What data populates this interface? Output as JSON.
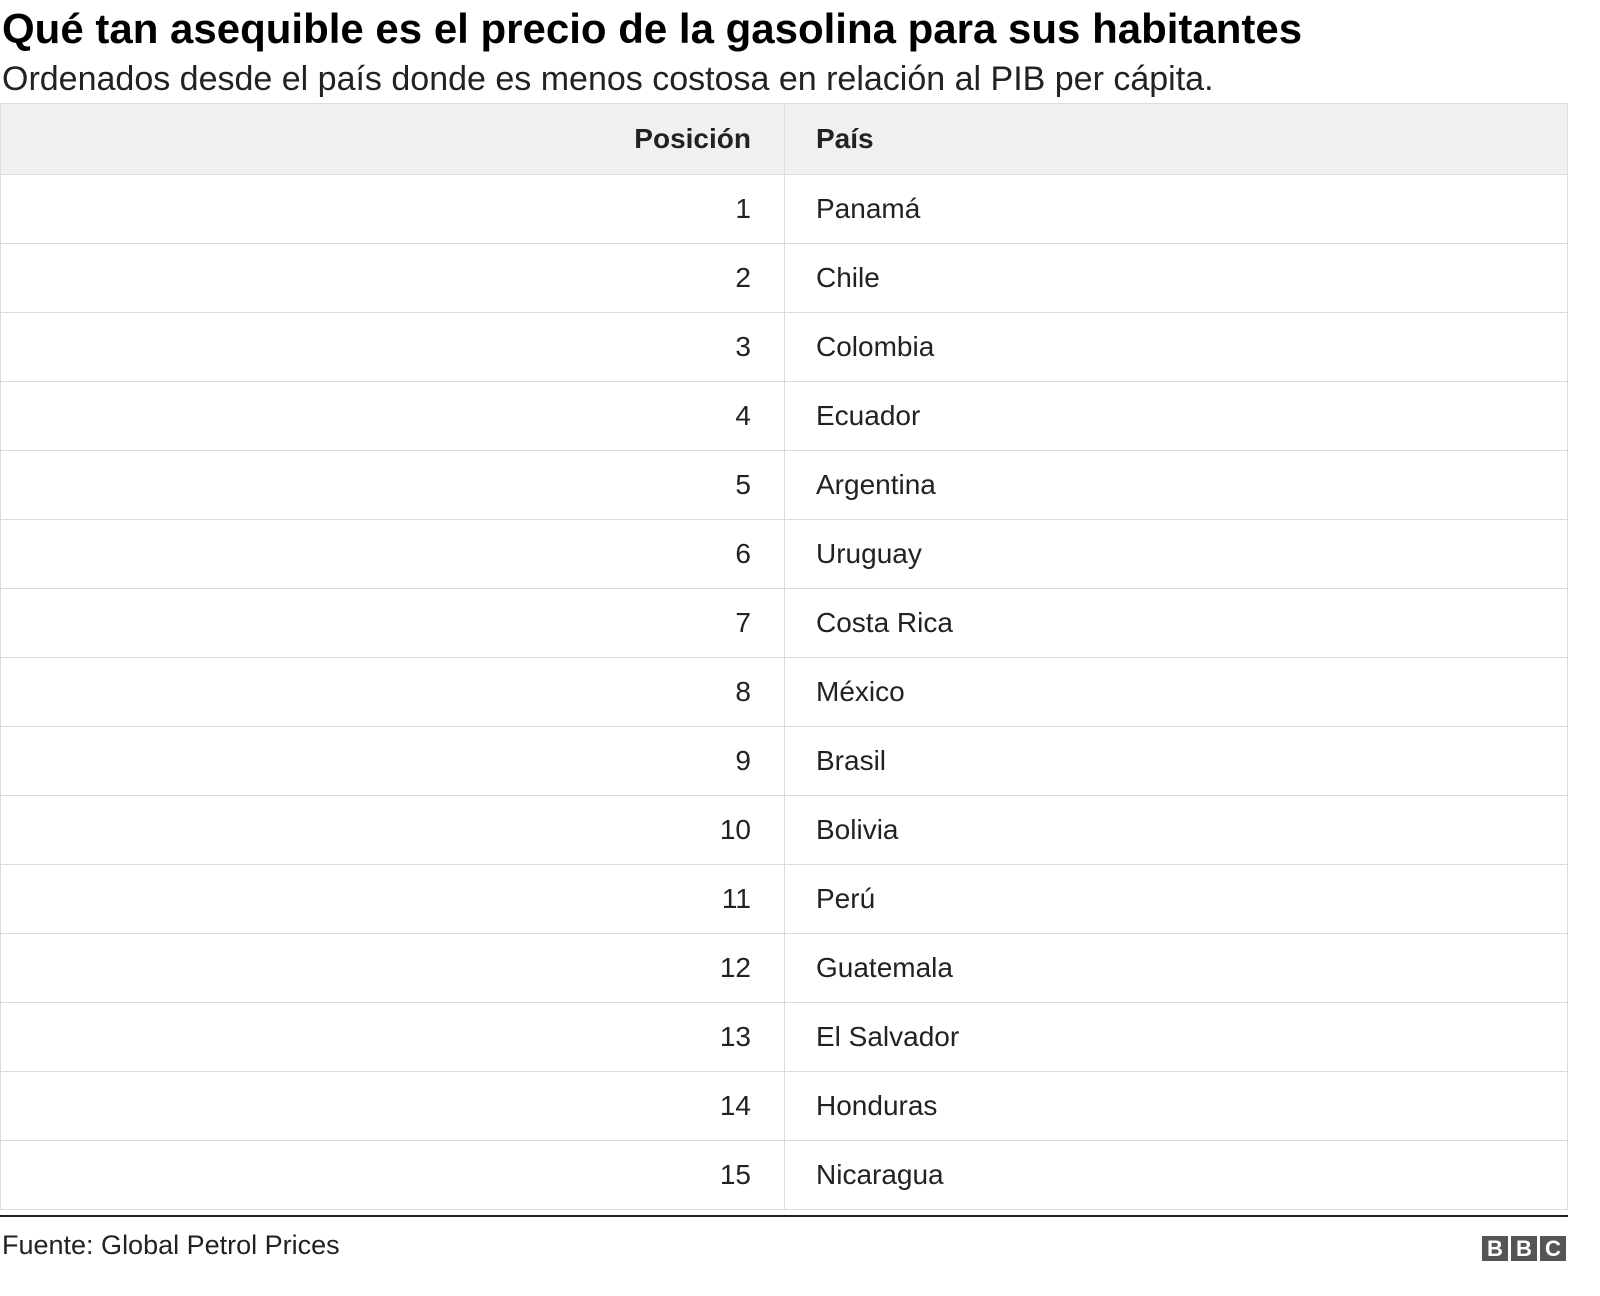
{
  "header": {
    "title": "Qué tan asequible es el precio de la gasolina para sus habitantes",
    "subtitle": "Ordenados desde el país donde es menos costosa en relación al PIB per cápita."
  },
  "table": {
    "columns": [
      "Posición",
      "País"
    ],
    "rows": [
      [
        1,
        "Panamá"
      ],
      [
        2,
        "Chile"
      ],
      [
        3,
        "Colombia"
      ],
      [
        4,
        "Ecuador"
      ],
      [
        5,
        "Argentina"
      ],
      [
        6,
        "Uruguay"
      ],
      [
        7,
        "Costa Rica"
      ],
      [
        8,
        "México"
      ],
      [
        9,
        "Brasil"
      ],
      [
        10,
        "Bolivia"
      ],
      [
        11,
        "Perú"
      ],
      [
        12,
        "Guatemala"
      ],
      [
        13,
        "El Salvador"
      ],
      [
        14,
        "Honduras"
      ],
      [
        15,
        "Nicaragua"
      ]
    ]
  },
  "footer": {
    "source": "Fuente: Global Petrol Prices",
    "logo": [
      "B",
      "B",
      "C"
    ]
  }
}
